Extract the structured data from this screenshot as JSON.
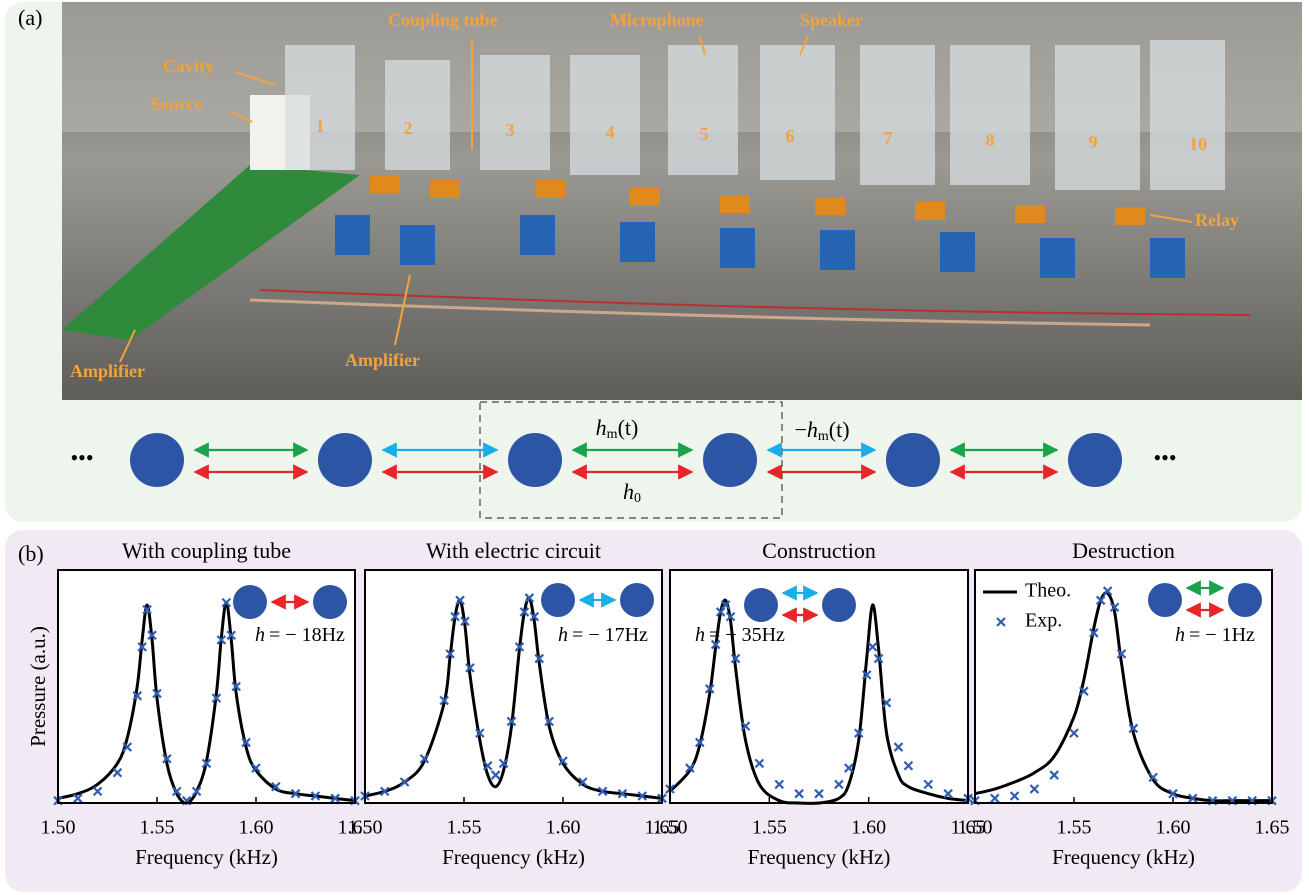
{
  "panel_a": {
    "label": "(a)",
    "photo_labels": [
      "Cavity",
      "Source",
      "Coupling tube",
      "Microphone",
      "Speaker",
      "Relay",
      "Amplifier",
      "Amplifier"
    ],
    "cavity_numbers": [
      "1",
      "2",
      "3",
      "4",
      "5",
      "6",
      "7",
      "8",
      "9",
      "10"
    ],
    "diagram": {
      "ellipsis_left": "•••",
      "ellipsis_right": "•••",
      "modulated": {
        "symbol": "h",
        "subscript": "m",
        "suffix": "(t)"
      },
      "modulated_negative": {
        "prefix": "−",
        "symbol": "h",
        "subscript": "m",
        "suffix": "(t)"
      },
      "static": {
        "symbol": "h",
        "subscript": "0"
      }
    }
  },
  "panel_b": {
    "label": "(b)"
  },
  "chart_data": [
    {
      "type": "line",
      "title": "With coupling tube",
      "xlabel": "Frequency (kHz)",
      "ylabel": "Pressure (a.u.)",
      "annotation": {
        "symbol": "h",
        "text": "= − 18Hz"
      },
      "x": [
        1.5,
        1.51,
        1.52,
        1.53,
        1.535,
        1.54,
        1.5425,
        1.545,
        1.5475,
        1.55,
        1.555,
        1.56,
        1.565,
        1.57,
        1.575,
        1.58,
        1.5825,
        1.585,
        1.5875,
        1.59,
        1.595,
        1.6,
        1.61,
        1.62,
        1.63,
        1.64,
        1.65
      ],
      "xlim": [
        1.5,
        1.65
      ],
      "xticks": [
        {
          "value": 1.5,
          "label": "1.50"
        },
        {
          "value": 1.55,
          "label": "1.55"
        },
        {
          "value": 1.6,
          "label": "1.60"
        },
        {
          "value": 1.65,
          "label": "1.65"
        }
      ],
      "ylim": [
        0,
        1
      ],
      "series": [
        {
          "color": "#000000",
          "values": [
            0.02,
            0.04,
            0.08,
            0.17,
            0.28,
            0.5,
            0.7,
            0.85,
            0.7,
            0.45,
            0.17,
            0.04,
            0,
            0.05,
            0.18,
            0.47,
            0.71,
            0.86,
            0.7,
            0.47,
            0.24,
            0.14,
            0.06,
            0.04,
            0.03,
            0.02,
            0.01
          ]
        },
        {
          "color": "#2f5db5",
          "marker": "x",
          "values": [
            0.01,
            0.02,
            0.05,
            0.13,
            0.24,
            0.46,
            0.67,
            0.83,
            0.72,
            0.47,
            0.19,
            0.05,
            0.01,
            0.05,
            0.17,
            0.45,
            0.7,
            0.86,
            0.72,
            0.5,
            0.26,
            0.15,
            0.07,
            0.04,
            0.03,
            0.02,
            0.01
          ]
        }
      ]
    },
    {
      "type": "line",
      "title": "With electric circuit",
      "xlabel": "Frequency (kHz)",
      "annotation": {
        "symbol": "h",
        "text": "= − 17Hz"
      },
      "x": [
        1.5,
        1.51,
        1.52,
        1.53,
        1.54,
        1.543,
        1.5455,
        1.548,
        1.5505,
        1.553,
        1.558,
        1.562,
        1.566,
        1.57,
        1.574,
        1.578,
        1.5805,
        1.583,
        1.5855,
        1.588,
        1.593,
        1.6,
        1.61,
        1.62,
        1.63,
        1.64,
        1.65
      ],
      "xlim": [
        1.5,
        1.65
      ],
      "xticks": [
        {
          "value": 1.5,
          "label": "1.50"
        },
        {
          "value": 1.55,
          "label": "1.55"
        },
        {
          "value": 1.6,
          "label": "1.60"
        },
        {
          "value": 1.65,
          "label": "1.65"
        }
      ],
      "ylim": [
        0,
        1
      ],
      "series": [
        {
          "color": "#000000",
          "values": [
            0.03,
            0.05,
            0.09,
            0.18,
            0.43,
            0.63,
            0.8,
            0.87,
            0.76,
            0.55,
            0.27,
            0.12,
            0.07,
            0.14,
            0.33,
            0.66,
            0.82,
            0.88,
            0.78,
            0.6,
            0.33,
            0.17,
            0.08,
            0.05,
            0.04,
            0.03,
            0.02
          ]
        },
        {
          "color": "#2f5db5",
          "marker": "x",
          "values": [
            0.03,
            0.05,
            0.09,
            0.19,
            0.44,
            0.64,
            0.8,
            0.87,
            0.78,
            0.58,
            0.3,
            0.16,
            0.12,
            0.17,
            0.35,
            0.67,
            0.82,
            0.88,
            0.8,
            0.62,
            0.35,
            0.18,
            0.09,
            0.05,
            0.04,
            0.03,
            0.02
          ]
        }
      ]
    },
    {
      "type": "line",
      "title": "Construction",
      "xlabel": "Frequency (kHz)",
      "annotation": {
        "symbol": "h",
        "text": "= − 35Hz"
      },
      "x": [
        1.5,
        1.51,
        1.515,
        1.52,
        1.523,
        1.5255,
        1.528,
        1.5305,
        1.533,
        1.538,
        1.545,
        1.555,
        1.565,
        1.575,
        1.585,
        1.59,
        1.595,
        1.599,
        1.602,
        1.605,
        1.609,
        1.615,
        1.62,
        1.63,
        1.64,
        1.65
      ],
      "xlim": [
        1.5,
        1.65
      ],
      "xticks": [
        {
          "value": 1.5,
          "label": "1.50"
        },
        {
          "value": 1.55,
          "label": "1.55"
        },
        {
          "value": 1.6,
          "label": "1.60"
        },
        {
          "value": 1.65,
          "label": "1.65"
        }
      ],
      "ylim": [
        0,
        1
      ],
      "series": [
        {
          "color": "#000000",
          "values": [
            0.05,
            0.14,
            0.25,
            0.47,
            0.67,
            0.82,
            0.87,
            0.78,
            0.58,
            0.27,
            0.08,
            0.01,
            0,
            0,
            0.02,
            0.08,
            0.27,
            0.62,
            0.85,
            0.66,
            0.3,
            0.12,
            0.07,
            0.04,
            0.02,
            0.01
          ]
        },
        {
          "color": "#2f5db5",
          "marker": "x",
          "values": [
            0.06,
            0.15,
            0.26,
            0.49,
            0.68,
            0.82,
            0.85,
            0.8,
            0.62,
            0.33,
            0.17,
            0.08,
            0.04,
            0.04,
            0.08,
            0.15,
            0.3,
            0.55,
            0.67,
            0.62,
            0.43,
            0.24,
            0.16,
            0.08,
            0.04,
            0.02
          ]
        }
      ]
    },
    {
      "type": "line",
      "title": "Destruction",
      "xlabel": "Frequency (kHz)",
      "annotation": {
        "symbol": "h",
        "text": "= − 1Hz"
      },
      "legend": "upper left",
      "x": [
        1.5,
        1.51,
        1.52,
        1.53,
        1.54,
        1.55,
        1.555,
        1.56,
        1.5635,
        1.567,
        1.5705,
        1.574,
        1.58,
        1.59,
        1.6,
        1.61,
        1.62,
        1.63,
        1.64,
        1.65
      ],
      "xlim": [
        1.5,
        1.65
      ],
      "xticks": [
        {
          "value": 1.5,
          "label": "1.50"
        },
        {
          "value": 1.55,
          "label": "1.55"
        },
        {
          "value": 1.6,
          "label": "1.60"
        },
        {
          "value": 1.65,
          "label": "1.65"
        }
      ],
      "ylim": [
        0,
        1
      ],
      "series": [
        {
          "name": "Theo.",
          "color": "#000000",
          "values": [
            0.04,
            0.06,
            0.09,
            0.13,
            0.2,
            0.37,
            0.53,
            0.75,
            0.87,
            0.9,
            0.82,
            0.6,
            0.3,
            0.1,
            0.04,
            0.02,
            0.01,
            0.01,
            0.01,
            0.01
          ]
        },
        {
          "name": "Exp.",
          "color": "#2f5db5",
          "marker": "x",
          "values": [
            0.01,
            0.02,
            0.03,
            0.06,
            0.12,
            0.3,
            0.48,
            0.73,
            0.87,
            0.91,
            0.84,
            0.64,
            0.32,
            0.11,
            0.04,
            0.02,
            0.01,
            0.01,
            0.01,
            0.01
          ]
        }
      ]
    }
  ]
}
